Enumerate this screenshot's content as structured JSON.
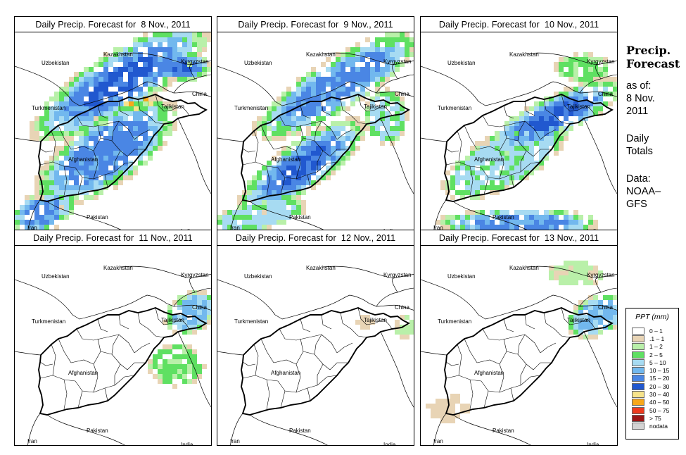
{
  "panels": [
    {
      "title": "Daily Precip. Forecast for  8 Nov., 2011",
      "coverage": "very-high"
    },
    {
      "title": "Daily Precip. Forecast for  9 Nov., 2011",
      "coverage": "high"
    },
    {
      "title": "Daily Precip. Forecast for  10 Nov., 2011",
      "coverage": "medium"
    },
    {
      "title": "Daily Precip. Forecast for  11 Nov., 2011",
      "coverage": "low"
    },
    {
      "title": "Daily Precip. Forecast for  12 Nov., 2011",
      "coverage": "minimal"
    },
    {
      "title": "Daily Precip. Forecast for  13 Nov., 2011",
      "coverage": "low-plus"
    }
  ],
  "countries": {
    "uzbekistan": "Uzbekistan",
    "kazakhstan": "Kazakhstan",
    "kyrgyzstan": "Kyrgyzstan",
    "china": "China",
    "tajikistan": "Tajikistan",
    "turkmenistan": "Turkmenistan",
    "afghanistan": "Afghanistan",
    "pakistan": "Pakistan",
    "iran": "Iran",
    "india": "India"
  },
  "side": {
    "title_line1": "Precip.",
    "title_line2": "Forecast",
    "asof_line1": "as of:",
    "asof_line2": "8 Nov.",
    "asof_line3": "2011",
    "totals_line1": "Daily",
    "totals_line2": "Totals",
    "data_line1": "Data:",
    "data_line2": "NOAA–",
    "data_line3": "GFS"
  },
  "legend": {
    "title": "PPT (mm)",
    "items": [
      {
        "label": "0 – 1",
        "color": "#ffffff"
      },
      {
        "label": ".1 – 1",
        "color": "#e8d4b5"
      },
      {
        "label": "1 – 2",
        "color": "#b9f0a9"
      },
      {
        "label": "2 – 5",
        "color": "#5fe062"
      },
      {
        "label": "5 – 10",
        "color": "#a7dbf2"
      },
      {
        "label": "10 – 15",
        "color": "#72b8ee"
      },
      {
        "label": "15 – 20",
        "color": "#4a86e4"
      },
      {
        "label": "20 – 30",
        "color": "#2158cf"
      },
      {
        "label": "30 – 40",
        "color": "#f6e38b"
      },
      {
        "label": "40 – 50",
        "color": "#f8a81b"
      },
      {
        "label": "50 – 75",
        "color": "#ee3b1e"
      },
      {
        "label": "> 75",
        "color": "#9c1616"
      },
      {
        "label": "nodata",
        "color": "#d3d3d3"
      }
    ]
  }
}
